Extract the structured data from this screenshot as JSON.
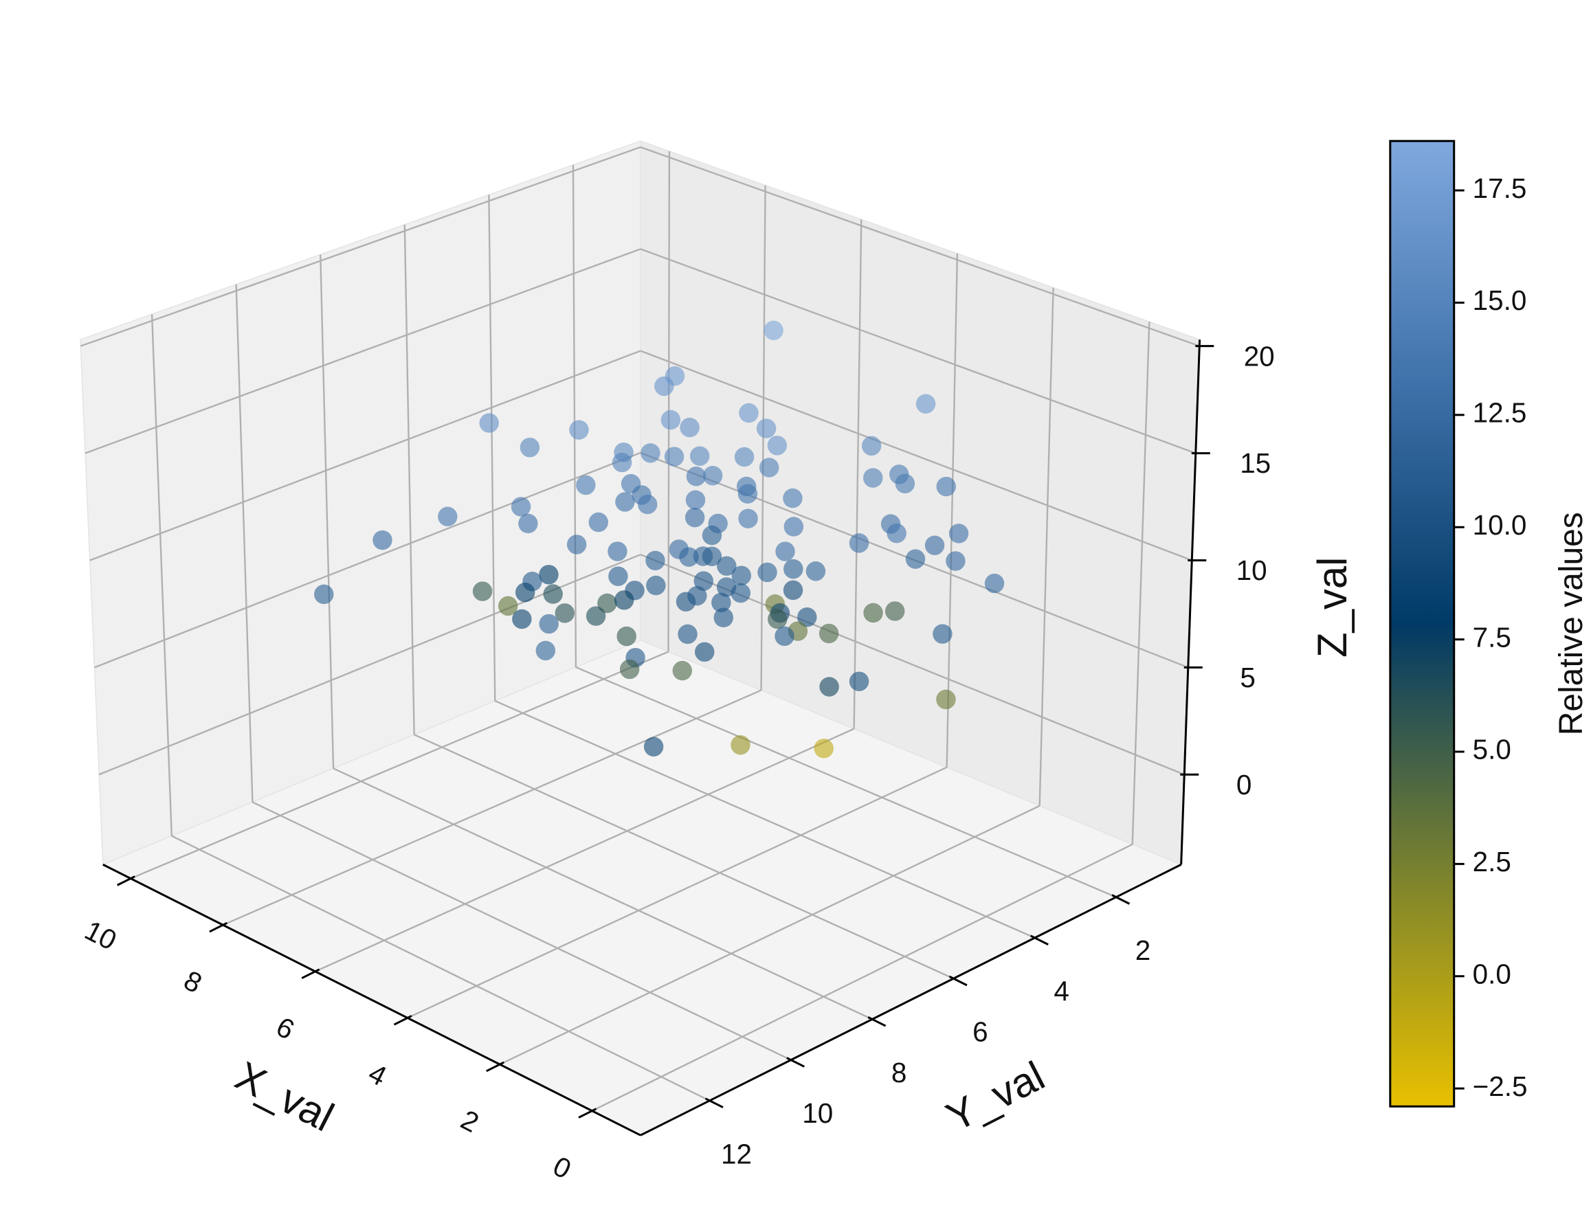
{
  "chart_data": {
    "type": "scatter3d",
    "x_label": "X_val",
    "y_label": "Y_val",
    "z_label": "Z_val",
    "xlim": [
      -1.05,
      10.6
    ],
    "ylim": [
      0.4,
      13.7
    ],
    "zlim": [
      -4.2,
      20.3
    ],
    "xticks": [
      0,
      2,
      4,
      6,
      8,
      10
    ],
    "yticks": [
      2,
      4,
      6,
      8,
      10,
      12
    ],
    "zticks": [
      0,
      5,
      10,
      15,
      20
    ],
    "grid": true,
    "opacity": 0.6,
    "colorbar": {
      "label": "Relative values",
      "lim": [
        -2.9,
        18.6
      ],
      "ticks": [
        {
          "value": -2.5,
          "label": "−2.5"
        },
        {
          "value": 0,
          "label": "0.0"
        },
        2.5,
        {
          "value": 5,
          "label": "5.0"
        },
        7.5,
        {
          "value": 10,
          "label": "10.0"
        },
        12.5,
        {
          "value": 15,
          "label": "15.0"
        },
        17.5
      ],
      "colormap": [
        "#e8c000",
        "#77802f",
        "#003a66",
        "#3f72aa",
        "#7fa8de"
      ]
    },
    "x": [
      5.8,
      6.2,
      6.6,
      3.3,
      6.2,
      5.0,
      5.8,
      5.5,
      8.0,
      6.9,
      7.5,
      6.4,
      6.1,
      6.3,
      5.5,
      5.0,
      4.4,
      3.9,
      6.7,
      5.0,
      6.1,
      5.4,
      6.5,
      6.6,
      5.3,
      3.4,
      3.6,
      3.1,
      3.1,
      6.2,
      6.2,
      5.9,
      5.5,
      5.1,
      4.5,
      7.7,
      8.2,
      7.2,
      6.5,
      5.6,
      5.0,
      5.2,
      4.3,
      3.3,
      5.5,
      3.0,
      2.3,
      8.8,
      6.7,
      6.1,
      6.0,
      5.5,
      5.2,
      5.6,
      5.5,
      4.3,
      3.7,
      2.8,
      3.2,
      2.7,
      5.1,
      4.5,
      4.3,
      4.0,
      4.7,
      5.5,
      5.9,
      6.0,
      7.3,
      7.3,
      1.7,
      8.1,
      7.1,
      7.3,
      6.0,
      5.1,
      4.3,
      4.8,
      5.7,
      5.2,
      9.1,
      8.0,
      6.5,
      6.4,
      5.3,
      5.2,
      6.7,
      6.3,
      7.0,
      6.6,
      4.9,
      4.4,
      4.0,
      3.9,
      3.7,
      4.8,
      4.8,
      4.4,
      6.0,
      5.4,
      4.3,
      2.6,
      6.5,
      5.3,
      5.9,
      6.2,
      5.6,
      3.4,
      3.6,
      2.5,
      5.6,
      4.7,
      3.7
    ],
    "y": [
      2.7,
      4.6,
      4.4,
      1.9,
      4.7,
      4.2,
      4.7,
      3.2,
      7.0,
      6.1,
      6.6,
      5.6,
      5.3,
      4.5,
      4.8,
      4.3,
      4.2,
      2.5,
      5.3,
      3.7,
      4.2,
      4.6,
      6.4,
      5.2,
      3.9,
      2.4,
      2.8,
      2.6,
      1.6,
      5.4,
      5.8,
      5.6,
      4.9,
      4.1,
      3.7,
      6.6,
      7.8,
      7.0,
      6.1,
      4.8,
      4.2,
      4.7,
      3.9,
      2.7,
      4.5,
      2.9,
      2.2,
      8.7,
      6.4,
      6.1,
      5.3,
      5.3,
      5.4,
      4.6,
      4.5,
      4.1,
      3.0,
      2.2,
      2.2,
      1.8,
      4.6,
      4.3,
      3.9,
      3.7,
      4.7,
      4.7,
      5.4,
      6.2,
      6.4,
      6.8,
      2.0,
      7.1,
      7.2,
      6.3,
      5.8,
      4.6,
      3.9,
      4.6,
      4.9,
      5.2,
      9.8,
      6.6,
      5.9,
      5.6,
      4.5,
      3.3,
      6.7,
      6.4,
      7.4,
      7.2,
      4.9,
      4.1,
      3.9,
      2.4,
      2.1,
      3.7,
      3.2,
      2.9,
      6.0,
      5.2,
      4.1,
      2.2,
      7.4,
      4.9,
      5.9,
      5.7,
      5.1,
      3.3,
      3.8,
      2.2,
      5.8,
      4.7,
      3.8
    ],
    "z": [
      17,
      16,
      15,
      15,
      14,
      15,
      14,
      13,
      14,
      14,
      13,
      13,
      13,
      12,
      13,
      13,
      14,
      13,
      12,
      12,
      11,
      12,
      12,
      11,
      11,
      12,
      12,
      12,
      11,
      11,
      11,
      11,
      11,
      11,
      11,
      10,
      10,
      10,
      10,
      10,
      10,
      10,
      10,
      10,
      9,
      10,
      10,
      9,
      9,
      9,
      8,
      9,
      9,
      8,
      8,
      9,
      9,
      9,
      8,
      8,
      8,
      8,
      8,
      8,
      8,
      7,
      7,
      8,
      7,
      7,
      8,
      6,
      7,
      6,
      7,
      7,
      7,
      7,
      6,
      7,
      7,
      5,
      6,
      6,
      6,
      5,
      6,
      6,
      6,
      6,
      6,
      6,
      6,
      5,
      5,
      5,
      4,
      4,
      5,
      5,
      5,
      5,
      5,
      4,
      4,
      3,
      3,
      3,
      3,
      2,
      0,
      0,
      0
    ],
    "c": [
      18.3,
      17.0,
      16.5,
      16.8,
      16.5,
      16.8,
      16.0,
      16.5,
      16.0,
      16.0,
      15.0,
      15.5,
      15.0,
      15.0,
      15.5,
      15.5,
      16.5,
      15.5,
      15.0,
      14.5,
      13.5,
      14.5,
      14.0,
      13.5,
      13.5,
      14.0,
      14.5,
      14.0,
      13.5,
      13.0,
      13.0,
      13.5,
      13.5,
      13.5,
      14.0,
      13.5,
      13.5,
      13.0,
      13.0,
      12.5,
      13.5,
      13.0,
      13.5,
      13.0,
      11.5,
      13.5,
      13.0,
      12.5,
      12.5,
      12.5,
      11.5,
      12.5,
      12.0,
      11.5,
      11.0,
      13.0,
      13.0,
      12.5,
      12.0,
      12.5,
      11.0,
      11.5,
      11.5,
      12.0,
      11.0,
      10.5,
      10.5,
      11.0,
      8.0,
      11.0,
      12.5,
      5.5,
      8.5,
      6.5,
      10.0,
      10.5,
      9.5,
      11.0,
      10.0,
      10.5,
      11.5,
      3.5,
      5.5,
      7.5,
      10.5,
      3.0,
      6.0,
      6.5,
      8.5,
      11.5,
      10.5,
      9.0,
      10.0,
      4.5,
      5.0,
      5.5,
      3.5,
      4.5,
      5.5,
      10.5,
      11.0,
      11.0,
      12.0,
      9.5,
      10.5,
      5.0,
      4.5,
      10.0,
      7.0,
      3.0,
      9.0,
      1.0,
      -1.0
    ]
  }
}
